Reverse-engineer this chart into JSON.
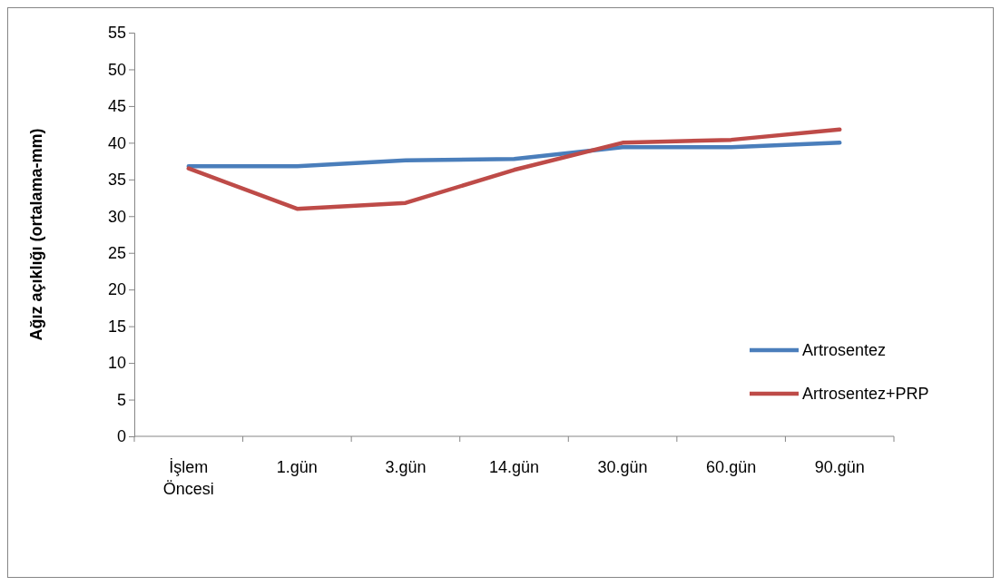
{
  "chart_data": {
    "type": "line",
    "ylabel": "Ağız açıklığı (ortalama-mm)",
    "categories": [
      "İşlem Öncesi",
      "1.gün",
      "3.gün",
      "14.gün",
      "30.gün",
      "60.gün",
      "90.gün"
    ],
    "series": [
      {
        "name": "Artrosentez",
        "color": "#4a7ebb",
        "values": [
          36.8,
          36.8,
          37.6,
          37.8,
          39.4,
          39.4,
          40.0
        ]
      },
      {
        "name": "Artrosentez+PRP",
        "color": "#be4b48",
        "values": [
          36.5,
          31.0,
          31.8,
          36.3,
          40.0,
          40.4,
          41.8
        ]
      }
    ],
    "ylim": [
      0,
      55
    ],
    "yticks": [
      0,
      5,
      10,
      15,
      20,
      25,
      30,
      35,
      40,
      45,
      50,
      55
    ],
    "legend": "right",
    "grid": false,
    "marker": "none",
    "line_style": "solid"
  }
}
